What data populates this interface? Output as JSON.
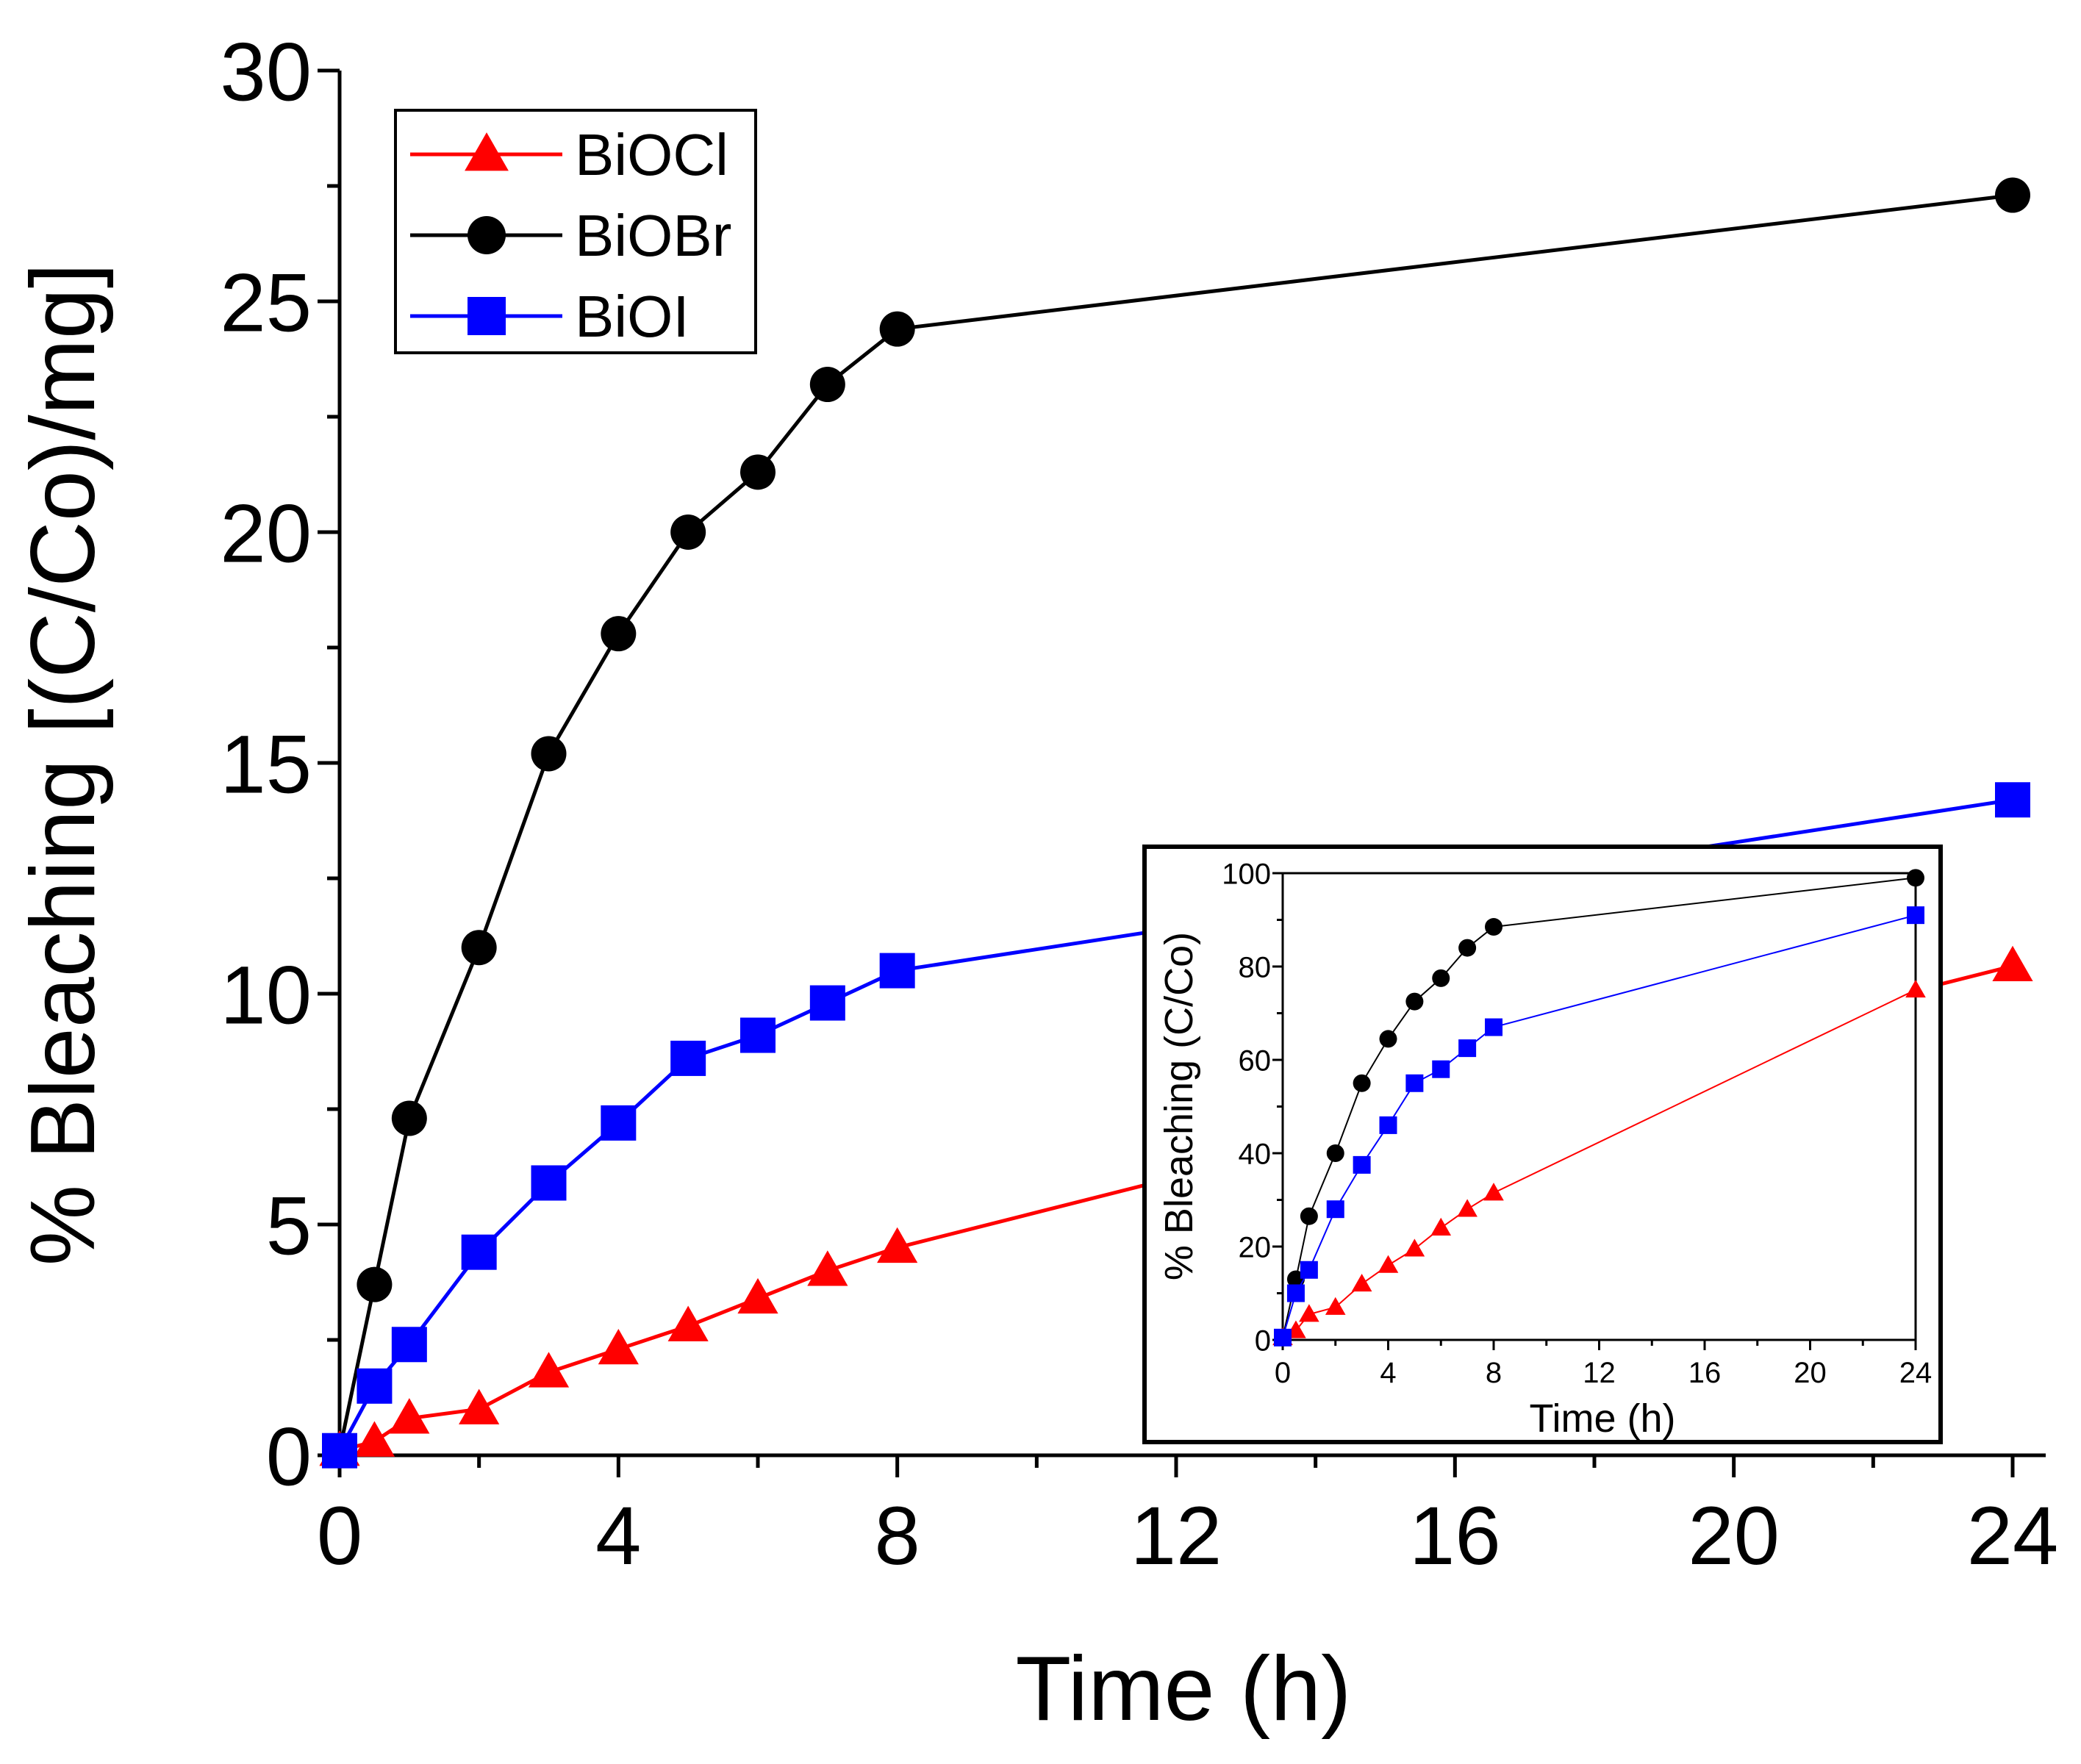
{
  "chart_data": [
    {
      "type": "line",
      "role": "main",
      "xlabel": "Time (h)",
      "ylabel": "% Bleaching [(C/Co)/mg]",
      "xlim": [
        0,
        24
      ],
      "ylim": [
        0,
        30
      ],
      "x_ticks": [
        0,
        4,
        8,
        12,
        16,
        20,
        24
      ],
      "y_ticks": [
        0,
        5,
        10,
        15,
        20,
        25,
        30
      ],
      "grid": false,
      "legend_position": "top-left",
      "series": [
        {
          "name": "BiOCl",
          "color": "#ff0000",
          "marker": "triangle",
          "x": [
            0,
            0.5,
            1,
            2,
            3,
            4,
            5,
            6,
            7,
            8,
            24
          ],
          "y": [
            0.1,
            0.3,
            0.8,
            1.0,
            1.8,
            2.3,
            2.8,
            3.4,
            4.0,
            4.5,
            10.6
          ]
        },
        {
          "name": "BiOBr",
          "color": "#000000",
          "marker": "circle",
          "x": [
            0,
            0.5,
            1,
            2,
            3,
            4,
            5,
            6,
            7,
            8,
            24
          ],
          "y": [
            0.1,
            3.7,
            7.3,
            11.0,
            15.2,
            17.8,
            20.0,
            21.3,
            23.2,
            24.4,
            27.3
          ]
        },
        {
          "name": "BiOI",
          "color": "#0000ff",
          "marker": "square",
          "x": [
            0,
            0.5,
            1,
            2,
            3,
            4,
            5,
            6,
            7,
            8,
            24
          ],
          "y": [
            0.1,
            1.5,
            2.4,
            4.4,
            5.9,
            7.2,
            8.6,
            9.1,
            9.8,
            10.5,
            14.2
          ]
        }
      ]
    },
    {
      "type": "line",
      "role": "inset",
      "xlabel": "Time (h)",
      "ylabel": "% Bleaching (C/Co)",
      "xlim": [
        0,
        24
      ],
      "ylim": [
        0,
        100
      ],
      "x_ticks": [
        0,
        4,
        8,
        12,
        16,
        20,
        24
      ],
      "y_ticks": [
        0,
        20,
        40,
        60,
        80,
        100
      ],
      "grid": false,
      "series": [
        {
          "name": "BiOCl",
          "color": "#ff0000",
          "marker": "triangle",
          "x": [
            0,
            0.5,
            1,
            2,
            3,
            4,
            5,
            6,
            7,
            8,
            24
          ],
          "y": [
            0.5,
            2,
            5.5,
            7,
            12,
            16,
            19.5,
            24,
            28,
            31.5,
            75
          ]
        },
        {
          "name": "BiOBr",
          "color": "#000000",
          "marker": "circle",
          "x": [
            0,
            0.5,
            1,
            2,
            3,
            4,
            5,
            6,
            7,
            8,
            24
          ],
          "y": [
            0.5,
            13,
            26.5,
            40,
            55,
            64.5,
            72.5,
            77.5,
            84,
            88.5,
            99
          ]
        },
        {
          "name": "BiOI",
          "color": "#0000ff",
          "marker": "square",
          "x": [
            0,
            0.5,
            1,
            2,
            3,
            4,
            5,
            6,
            7,
            8,
            24
          ],
          "y": [
            0.5,
            10,
            15,
            28,
            37.5,
            46,
            55,
            58,
            62.5,
            67,
            91
          ]
        }
      ]
    }
  ]
}
